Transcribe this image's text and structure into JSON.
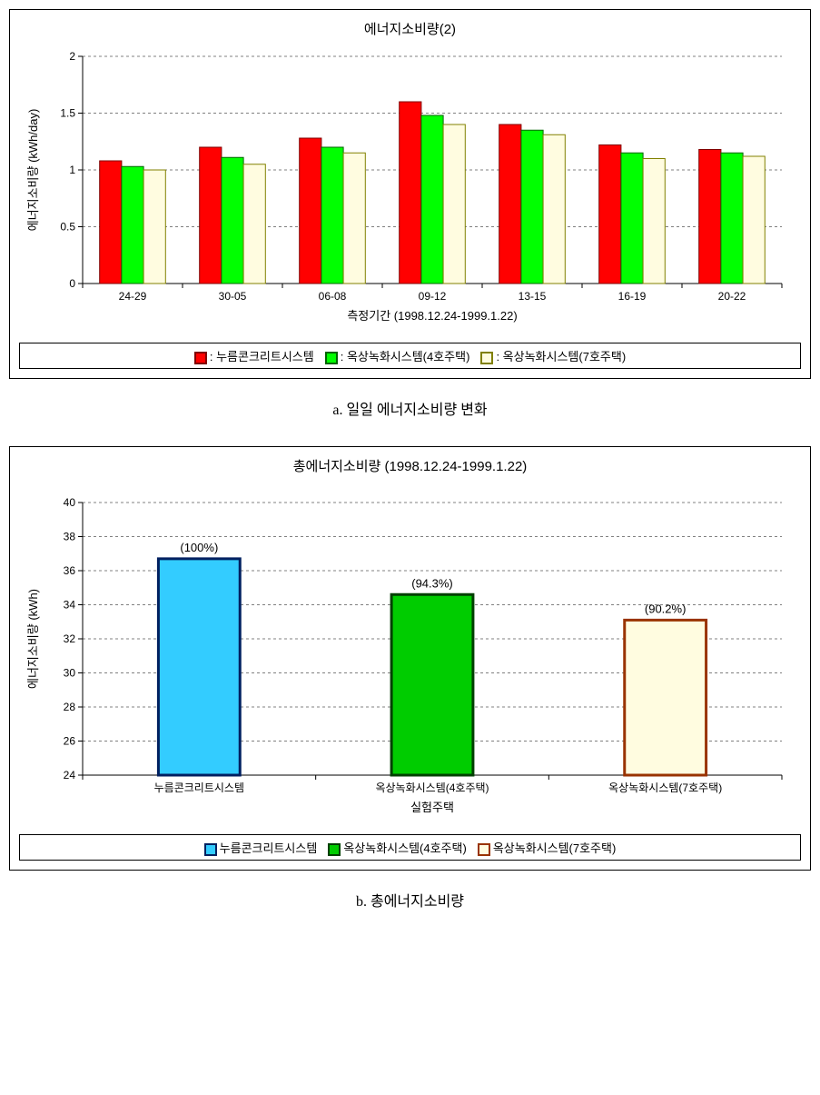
{
  "chartA": {
    "type": "grouped-bar",
    "title": "에너지소비량(2)",
    "caption": "a. 일일 에너지소비량 변화",
    "xlabel": "측정기간 (1998.12.24-1999.1.22)",
    "ylabel": "에너지소비량 (kWh/day)",
    "categories": [
      "24-29",
      "30-05",
      "06-08",
      "09-12",
      "13-15",
      "16-19",
      "20-22"
    ],
    "ylim": [
      0,
      2
    ],
    "ytick_step": 0.5,
    "grid_color": "#808080",
    "background_color": "#ffffff",
    "bar_width": 0.22,
    "series": [
      {
        "label": ": 누름콘크리트시스템",
        "fill": "#ff0000",
        "border": "#800000",
        "values": [
          1.08,
          1.2,
          1.28,
          1.6,
          1.4,
          1.22,
          1.18
        ]
      },
      {
        "label": ": 옥상녹화시스템(4호주택)",
        "fill": "#00ff00",
        "border": "#006400",
        "values": [
          1.03,
          1.11,
          1.2,
          1.48,
          1.35,
          1.15,
          1.15
        ]
      },
      {
        "label": ": 옥상녹화시스템(7호주택)",
        "fill": "#fffce0",
        "border": "#808000",
        "values": [
          1.0,
          1.05,
          1.15,
          1.4,
          1.31,
          1.1,
          1.12
        ]
      }
    ]
  },
  "chartB": {
    "type": "bar",
    "title": "총에너지소비량 (1998.12.24-1999.1.22)",
    "caption": "b. 총에너지소비량",
    "xlabel": "실험주택",
    "ylabel": "에너지소비량 (kWh)",
    "ylim": [
      24,
      40
    ],
    "ytick_step": 2,
    "grid_color": "#808080",
    "background_color": "#ffffff",
    "bar_width": 0.35,
    "categories": [
      "누름콘크리트시스템",
      "옥상녹화시스템(4호주택)",
      "옥상녹화시스템(7호주택)"
    ],
    "bars": [
      {
        "value": 36.7,
        "pct": "(100%)",
        "fill": "#33ccff",
        "border": "#002060"
      },
      {
        "value": 34.6,
        "pct": "(94.3%)",
        "fill": "#00cc00",
        "border": "#004000"
      },
      {
        "value": 33.1,
        "pct": "(90.2%)",
        "fill": "#fffce0",
        "border": "#993300"
      }
    ],
    "legend": [
      {
        "label": "누름콘크리트시스템",
        "fill": "#33ccff",
        "border": "#002060"
      },
      {
        "label": "옥상녹화시스템(4호주택)",
        "fill": "#00cc00",
        "border": "#004000"
      },
      {
        "label": "옥상녹화시스템(7호주택)",
        "fill": "#fffce0",
        "border": "#993300"
      }
    ]
  }
}
